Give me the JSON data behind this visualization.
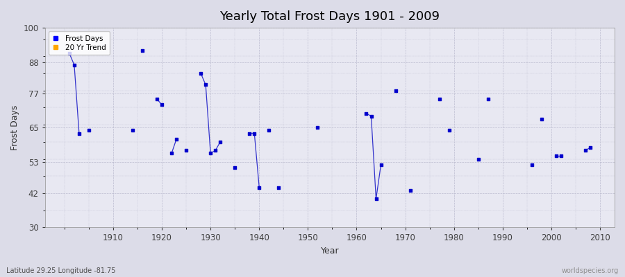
{
  "title": "Yearly Total Frost Days 1901 - 2009",
  "xlabel": "Year",
  "ylabel": "Frost Days",
  "bottom_left_label": "Latitude 29.25 Longitude -81.75",
  "bottom_right_label": "worldspecies.org",
  "ylim": [
    30,
    100
  ],
  "yticks": [
    30,
    42,
    53,
    65,
    77,
    88,
    100
  ],
  "legend_entries": [
    "Frost Days",
    "20 Yr Trend"
  ],
  "legend_colors": [
    "#0000ff",
    "#ffa500"
  ],
  "bg_color": "#dcdce8",
  "plot_bg_color": "#e8e8f2",
  "line_color": "#3333cc",
  "marker_color": "#0000cc",
  "grid_color": "#b8b8cc",
  "frost_days_data": [
    [
      1901,
      91
    ],
    [
      1902,
      87
    ],
    [
      1903,
      63
    ],
    [
      1905,
      64
    ],
    [
      1914,
      64
    ],
    [
      1916,
      92
    ],
    [
      1919,
      75
    ],
    [
      1920,
      73
    ],
    [
      1922,
      56
    ],
    [
      1923,
      61
    ],
    [
      1925,
      57
    ],
    [
      1928,
      84
    ],
    [
      1929,
      80
    ],
    [
      1930,
      56
    ],
    [
      1931,
      57
    ],
    [
      1932,
      60
    ],
    [
      1935,
      51
    ],
    [
      1938,
      63
    ],
    [
      1939,
      63
    ],
    [
      1940,
      44
    ],
    [
      1942,
      64
    ],
    [
      1944,
      44
    ],
    [
      1952,
      65
    ],
    [
      1962,
      70
    ],
    [
      1963,
      69
    ],
    [
      1964,
      40
    ],
    [
      1965,
      52
    ],
    [
      1968,
      78
    ],
    [
      1971,
      43
    ],
    [
      1977,
      75
    ],
    [
      1979,
      64
    ],
    [
      1985,
      54
    ],
    [
      1987,
      75
    ],
    [
      1996,
      52
    ],
    [
      1998,
      68
    ],
    [
      2001,
      55
    ],
    [
      2002,
      55
    ],
    [
      2007,
      57
    ],
    [
      2008,
      58
    ]
  ]
}
